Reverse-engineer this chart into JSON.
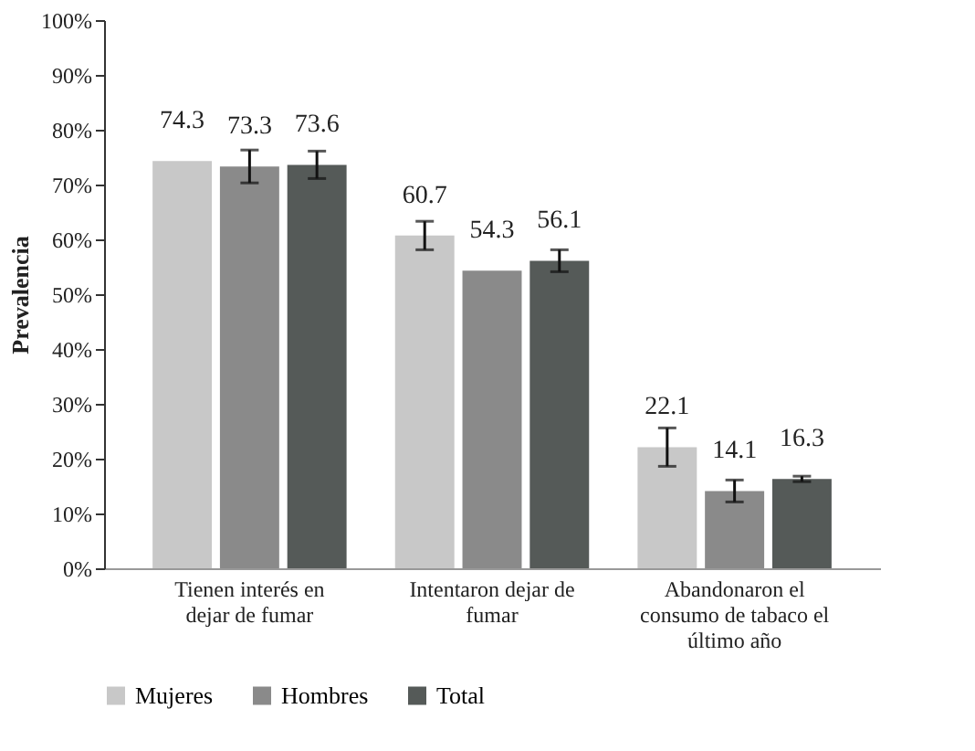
{
  "chart_data": {
    "type": "bar",
    "ylabel": "Prevalencia",
    "categories": [
      "Tienen interés en dejar de fumar",
      "Intentaron dejar de fumar",
      "Abandonaron el consumo de tabaco el último año"
    ],
    "series": [
      {
        "name": "Mujeres",
        "color": "#c8c8c8",
        "values": [
          74.3,
          60.7,
          22.1
        ],
        "errors": [
          null,
          2.6,
          3.5
        ]
      },
      {
        "name": "Hombres",
        "color": "#8a8a8a",
        "values": [
          73.3,
          54.3,
          14.1
        ],
        "errors": [
          3,
          null,
          2
        ]
      },
      {
        "name": "Total",
        "color": "#555a58",
        "values": [
          73.6,
          56.1,
          16.3
        ],
        "errors": [
          2.5,
          2,
          0.5
        ]
      }
    ],
    "ylim": [
      0,
      100
    ],
    "yticks": [
      {
        "value": 0,
        "label": "0%"
      },
      {
        "value": 10,
        "label": "10%"
      },
      {
        "value": 20,
        "label": "20%"
      },
      {
        "value": 30,
        "label": "30%"
      },
      {
        "value": 40,
        "label": "40%"
      },
      {
        "value": 50,
        "label": "50%"
      },
      {
        "value": 60,
        "label": "60%"
      },
      {
        "value": 70,
        "label": "70%"
      },
      {
        "value": 80,
        "label": "80%"
      },
      {
        "value": 90,
        "label": "90%"
      },
      {
        "value": 100,
        "label": "100%"
      }
    ],
    "data_labels": true,
    "grid": false,
    "legend": "bottom"
  }
}
